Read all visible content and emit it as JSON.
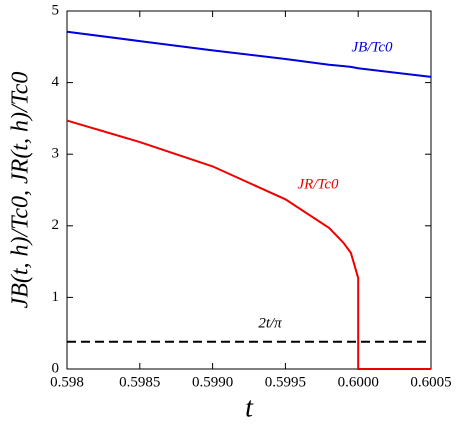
{
  "chart_data": {
    "type": "line",
    "xlabel": "t",
    "ylabel": "JB(t, h)/Tc0,  JR(t, h)/Tc0",
    "x": [
      0.598,
      0.5985,
      0.599,
      0.5995,
      0.5998,
      0.5999,
      0.59995,
      0.6,
      0.6,
      0.6005
    ],
    "series": [
      {
        "name": "JB/Tc0",
        "color": "#0000dd",
        "dash": false,
        "values": [
          4.71,
          4.58,
          4.45,
          4.33,
          4.25,
          4.23,
          4.22,
          4.2,
          4.2,
          4.08
        ]
      },
      {
        "name": "JR/Tc0",
        "color": "#ee0000",
        "dash": false,
        "values": [
          3.47,
          3.17,
          2.83,
          2.37,
          1.97,
          1.76,
          1.62,
          1.27,
          0,
          0
        ]
      },
      {
        "name": "2t/π",
        "color": "#000000",
        "dash": true,
        "values": [
          0.38,
          0.38,
          0.38,
          0.38,
          0.38,
          0.38,
          0.38,
          0.38,
          0.38,
          0.38
        ]
      }
    ],
    "xlim": [
      0.598,
      0.6005
    ],
    "ylim": [
      0,
      5
    ],
    "xticks": [
      0.598,
      0.5985,
      {
        "value": 0.599,
        "label": "0.5990"
      },
      0.5995,
      {
        "value": 0.6,
        "label": "0.6000"
      },
      0.6005
    ],
    "yticks": [
      0,
      1,
      2,
      3,
      4,
      5
    ],
    "grid": false
  }
}
